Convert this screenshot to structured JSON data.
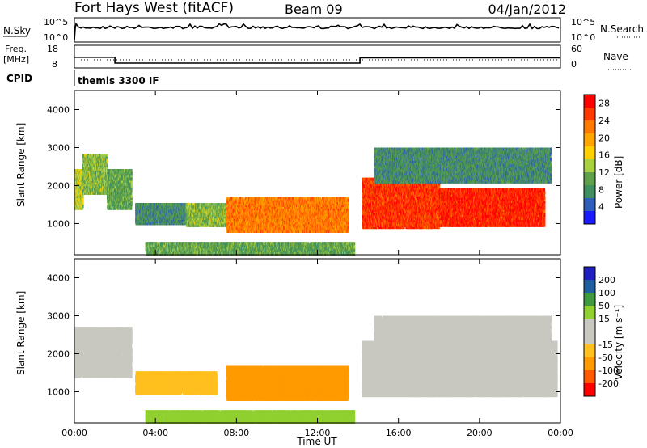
{
  "header": {
    "station": "Fort Hays West (fitACF)",
    "beam": "Beam 09",
    "date": "04/Jan/2012"
  },
  "side_labels": {
    "nsky": "N.Sky",
    "nsearch": "N.Search",
    "freq": "Freq.",
    "freq_unit": "[MHz]",
    "nave": "Nave",
    "cpid": "CPID",
    "cpid_value": "themis 3300 IF"
  },
  "noise_panel": {
    "left_ticks": [
      "10^5",
      "10^0"
    ],
    "right_ticks": [
      "10^5",
      "10^0"
    ]
  },
  "freq_panel": {
    "left_ticks": [
      "18",
      "8"
    ],
    "right_ticks": [
      "60",
      "0"
    ],
    "freq_segments": [
      {
        "start_h": 0,
        "end_h": 2,
        "value": 13.5
      },
      {
        "start_h": 2,
        "end_h": 14.1,
        "value": 10.5
      },
      {
        "start_h": 14.1,
        "end_h": 24,
        "value": 13.2
      }
    ]
  },
  "colors": {
    "power": [
      "#1a1aff",
      "#2f5fb8",
      "#3f8f5f",
      "#5fa04a",
      "#a8d040",
      "#ffd000",
      "#ffa500",
      "#ff7a00",
      "#ff3a00",
      "#ff0000"
    ],
    "velocity": [
      "#ff0000",
      "#ff5a00",
      "#ff9a00",
      "#ffc020",
      "#c8c8c0",
      "#c8c8c0",
      "#90d030",
      "#3f9a3f",
      "#1f5fa0",
      "#2020c0"
    ]
  },
  "chart_data": [
    {
      "type": "heatmap",
      "name": "power",
      "xlabel": "",
      "ylabel": "Slant Range [km]",
      "xlim": [
        0,
        24
      ],
      "ylim": [
        180,
        4500
      ],
      "y_ticks": [
        "1000",
        "2000",
        "3000",
        "4000"
      ],
      "colorbar_label": "Power [dB]",
      "colorbar_ticks": [
        "4",
        "8",
        "12",
        "16",
        "20",
        "24",
        "28"
      ],
      "bands": [
        {
          "t0": 0.0,
          "t1": 0.4,
          "r0": 1400,
          "r1": 2400,
          "value": 14
        },
        {
          "t0": 0.4,
          "t1": 1.6,
          "r0": 1800,
          "r1": 2800,
          "value": 12
        },
        {
          "t0": 1.6,
          "t1": 2.8,
          "r0": 1400,
          "r1": 2400,
          "value": 10
        },
        {
          "t0": 3.0,
          "t1": 5.5,
          "r0": 1000,
          "r1": 1500,
          "value": 8
        },
        {
          "t0": 5.5,
          "t1": 7.5,
          "r0": 950,
          "r1": 1500,
          "value": 12
        },
        {
          "t0": 7.5,
          "t1": 13.5,
          "r0": 800,
          "r1": 1700,
          "value": 22
        },
        {
          "t0": 14.2,
          "t1": 18,
          "r0": 900,
          "r1": 2200,
          "value": 26
        },
        {
          "t0": 18,
          "t1": 23.2,
          "r0": 950,
          "r1": 1900,
          "value": 27
        },
        {
          "t0": 14.8,
          "t1": 23.5,
          "r0": 2100,
          "r1": 3000,
          "value": 8
        },
        {
          "t0": 3.5,
          "t1": 13.8,
          "r0": 200,
          "r1": 500,
          "value": 10
        }
      ]
    },
    {
      "type": "heatmap",
      "name": "velocity",
      "xlabel": "Time UT",
      "ylabel": "Slant Range [km]",
      "xlim": [
        0,
        24
      ],
      "ylim": [
        180,
        4500
      ],
      "x_ticks": [
        "00:00",
        "04:00",
        "08:00",
        "12:00",
        "16:00",
        "20:00",
        "00:00"
      ],
      "y_ticks": [
        "1000",
        "2000",
        "3000",
        "4000"
      ],
      "colorbar_label": "Velocity [m s⁻¹]",
      "colorbar_ticks": [
        "200",
        "100",
        "50",
        "15",
        "-15",
        "-50",
        "-100",
        "-200"
      ],
      "bands": [
        {
          "t0": 0.0,
          "t1": 2.8,
          "r0": 1400,
          "r1": 2700,
          "value": 0
        },
        {
          "t0": 3.0,
          "t1": 7.0,
          "r0": 950,
          "r1": 1500,
          "value": -20
        },
        {
          "t0": 7.5,
          "t1": 13.5,
          "r0": 800,
          "r1": 1700,
          "value": -60
        },
        {
          "t0": 14.2,
          "t1": 23.8,
          "r0": 900,
          "r1": 2300,
          "value": 0
        },
        {
          "t0": 14.8,
          "t1": 23.5,
          "r0": 2100,
          "r1": 3000,
          "value": 0
        },
        {
          "t0": 3.5,
          "t1": 13.8,
          "r0": 200,
          "r1": 500,
          "value": 20
        }
      ]
    }
  ]
}
